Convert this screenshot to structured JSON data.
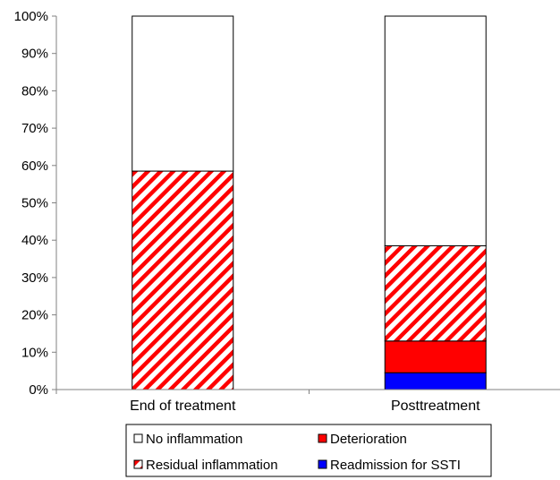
{
  "chart_data": {
    "type": "bar",
    "stacked": true,
    "categories": [
      "End of treatment",
      "Posttreatment"
    ],
    "series": [
      {
        "name": "Readmission for SSTI",
        "values": [
          0,
          4.5
        ],
        "color": "#0000ff",
        "pattern": "solid"
      },
      {
        "name": "Deterioration",
        "values": [
          0,
          8.5
        ],
        "color": "#ff0000",
        "pattern": "solid"
      },
      {
        "name": "Residual inflammation",
        "values": [
          58.5,
          25.5
        ],
        "color": "#ff0000",
        "pattern": "diagonal-stripes"
      },
      {
        "name": "No  inflammation",
        "values": [
          41.5,
          61.5
        ],
        "color": "#ffffff",
        "pattern": "solid"
      }
    ],
    "yticks": [
      "0%",
      "10%",
      "20%",
      "30%",
      "40%",
      "50%",
      "60%",
      "70%",
      "80%",
      "90%",
      "100%"
    ],
    "ylim": [
      0,
      100
    ],
    "xlabel": "",
    "ylabel": "",
    "title": "",
    "grid": false,
    "legend": {
      "position": "bottom",
      "items": [
        {
          "label": "No  inflammation",
          "swatch": "white"
        },
        {
          "label": "Deterioration",
          "swatch": "red"
        },
        {
          "label": "Residual inflammation",
          "swatch": "red-stripes"
        },
        {
          "label": "Readmission for SSTI",
          "swatch": "blue"
        }
      ]
    }
  }
}
